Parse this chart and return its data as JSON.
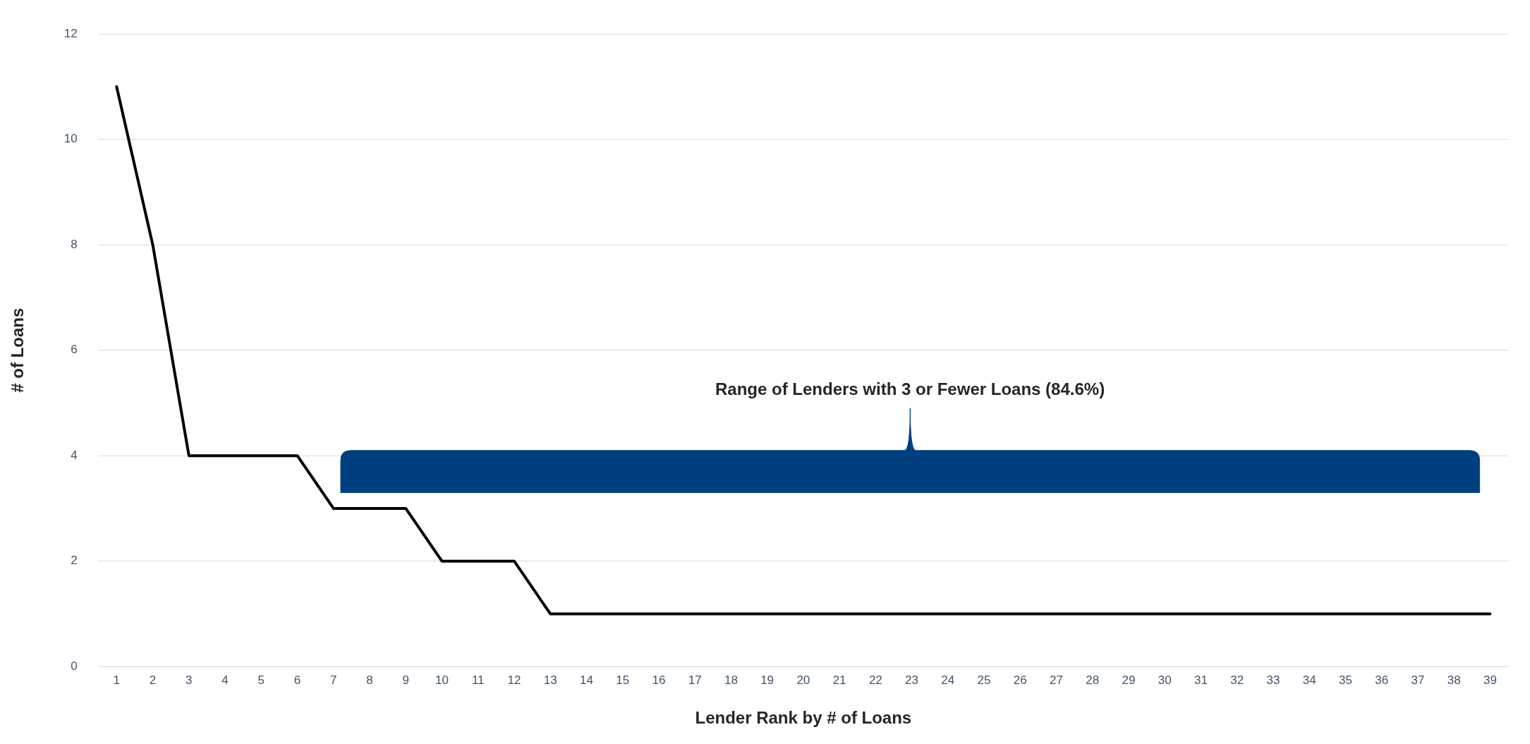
{
  "chart_data": {
    "type": "line",
    "xlabel": "Lender Rank by # of Loans",
    "ylabel": "# of Loans",
    "categories": [
      "1",
      "2",
      "3",
      "4",
      "5",
      "6",
      "7",
      "8",
      "9",
      "10",
      "11",
      "12",
      "13",
      "14",
      "15",
      "16",
      "17",
      "18",
      "19",
      "20",
      "21",
      "22",
      "23",
      "24",
      "25",
      "26",
      "27",
      "28",
      "29",
      "30",
      "31",
      "32",
      "33",
      "34",
      "35",
      "36",
      "37",
      "38",
      "39"
    ],
    "series": [
      {
        "color": "#000000",
        "values": [
          11,
          8,
          4,
          4,
          4,
          4,
          3,
          3,
          3,
          2,
          2,
          2,
          1,
          1,
          1,
          1,
          1,
          1,
          1,
          1,
          1,
          1,
          1,
          1,
          1,
          1,
          1,
          1,
          1,
          1,
          1,
          1,
          1,
          1,
          1,
          1,
          1,
          1,
          1
        ]
      }
    ],
    "ylim": [
      0,
      12
    ],
    "yticks": [
      0,
      2,
      4,
      6,
      8,
      10,
      12
    ],
    "grid": "y",
    "legend": false,
    "marker": "none",
    "line_style": "solid",
    "annotations": [
      "Range of Lenders with 3 or Fewer Loans (84.6%)"
    ]
  }
}
